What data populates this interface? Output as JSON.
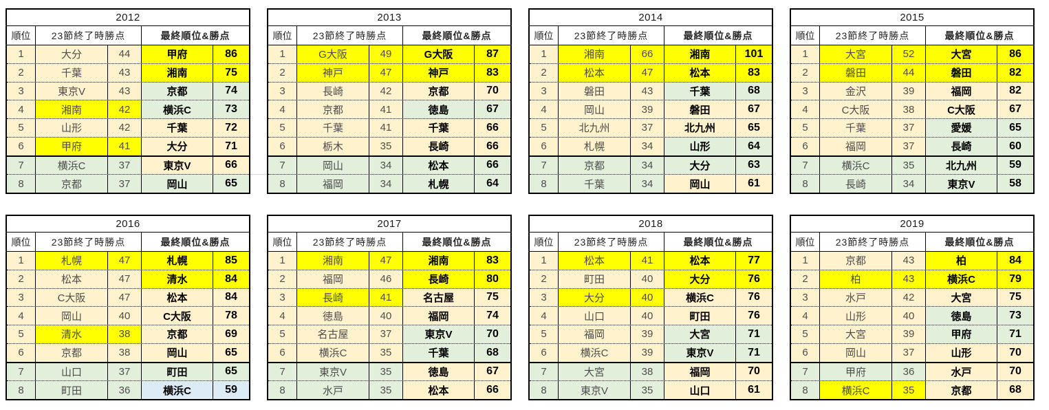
{
  "colors": {
    "cream": "#FFF2CC",
    "green": "#E2EFDA",
    "yellow": "#FFFF00",
    "blue": "#DDEBF7",
    "border": "#000000",
    "left_text": "#4d4d4d",
    "right_text": "#000000"
  },
  "headers": {
    "rank": "順位",
    "round23": "23節終了時勝点",
    "final": "最終順位&勝点"
  },
  "tables": [
    {
      "year": "2012",
      "rows": [
        {
          "rank": "1",
          "rbg": "cream",
          "team": "大分",
          "pts": "44",
          "bg": "cream",
          "fteam": "甲府",
          "fpts": "86",
          "fbg": "yellow"
        },
        {
          "rank": "2",
          "rbg": "cream",
          "team": "千葉",
          "pts": "43",
          "bg": "cream",
          "fteam": "湘南",
          "fpts": "75",
          "fbg": "yellow"
        },
        {
          "rank": "3",
          "rbg": "cream",
          "team": "東京V",
          "pts": "43",
          "bg": "cream",
          "fteam": "京都",
          "fpts": "74",
          "fbg": "green"
        },
        {
          "rank": "4",
          "rbg": "cream",
          "team": "湘南",
          "pts": "42",
          "bg": "yellow",
          "fteam": "横浜C",
          "fpts": "73",
          "fbg": "green"
        },
        {
          "rank": "5",
          "rbg": "cream",
          "team": "山形",
          "pts": "42",
          "bg": "cream",
          "fteam": "千葉",
          "fpts": "72",
          "fbg": "cream"
        },
        {
          "rank": "6",
          "rbg": "cream",
          "team": "甲府",
          "pts": "41",
          "bg": "yellow",
          "fteam": "大分",
          "fpts": "71",
          "fbg": "cream"
        },
        {
          "rank": "7",
          "rbg": "green",
          "team": "横浜C",
          "pts": "37",
          "bg": "green",
          "fteam": "東京V",
          "fpts": "66",
          "fbg": "cream"
        },
        {
          "rank": "8",
          "rbg": "green",
          "team": "京都",
          "pts": "37",
          "bg": "green",
          "fteam": "岡山",
          "fpts": "65",
          "fbg": "green"
        }
      ]
    },
    {
      "year": "2013",
      "rows": [
        {
          "rank": "1",
          "rbg": "cream",
          "team": "G大阪",
          "pts": "49",
          "bg": "yellow",
          "fteam": "G大阪",
          "fpts": "87",
          "fbg": "yellow"
        },
        {
          "rank": "2",
          "rbg": "cream",
          "team": "神戸",
          "pts": "47",
          "bg": "yellow",
          "fteam": "神戸",
          "fpts": "83",
          "fbg": "yellow"
        },
        {
          "rank": "3",
          "rbg": "cream",
          "team": "長崎",
          "pts": "42",
          "bg": "cream",
          "fteam": "京都",
          "fpts": "70",
          "fbg": "cream"
        },
        {
          "rank": "4",
          "rbg": "cream",
          "team": "京都",
          "pts": "41",
          "bg": "cream",
          "fteam": "徳島",
          "fpts": "67",
          "fbg": "green"
        },
        {
          "rank": "5",
          "rbg": "cream",
          "team": "千葉",
          "pts": "41",
          "bg": "cream",
          "fteam": "千葉",
          "fpts": "66",
          "fbg": "cream"
        },
        {
          "rank": "6",
          "rbg": "cream",
          "team": "栃木",
          "pts": "35",
          "bg": "cream",
          "fteam": "長崎",
          "fpts": "66",
          "fbg": "cream"
        },
        {
          "rank": "7",
          "rbg": "green",
          "team": "岡山",
          "pts": "34",
          "bg": "green",
          "fteam": "松本",
          "fpts": "66",
          "fbg": "green"
        },
        {
          "rank": "8",
          "rbg": "green",
          "team": "福岡",
          "pts": "34",
          "bg": "green",
          "fteam": "札幌",
          "fpts": "64",
          "fbg": "green"
        }
      ]
    },
    {
      "year": "2014",
      "rows": [
        {
          "rank": "1",
          "rbg": "cream",
          "team": "湘南",
          "pts": "66",
          "bg": "yellow",
          "fteam": "湘南",
          "fpts": "101",
          "fbg": "yellow"
        },
        {
          "rank": "2",
          "rbg": "cream",
          "team": "松本",
          "pts": "47",
          "bg": "yellow",
          "fteam": "松本",
          "fpts": "83",
          "fbg": "yellow"
        },
        {
          "rank": "3",
          "rbg": "cream",
          "team": "磐田",
          "pts": "43",
          "bg": "cream",
          "fteam": "千葉",
          "fpts": "68",
          "fbg": "green"
        },
        {
          "rank": "4",
          "rbg": "cream",
          "team": "岡山",
          "pts": "39",
          "bg": "cream",
          "fteam": "磐田",
          "fpts": "67",
          "fbg": "cream"
        },
        {
          "rank": "5",
          "rbg": "cream",
          "team": "北九州",
          "pts": "37",
          "bg": "cream",
          "fteam": "北九州",
          "fpts": "65",
          "fbg": "cream"
        },
        {
          "rank": "6",
          "rbg": "cream",
          "team": "札幌",
          "pts": "34",
          "bg": "cream",
          "fteam": "山形",
          "fpts": "64",
          "fbg": "green"
        },
        {
          "rank": "7",
          "rbg": "green",
          "team": "京都",
          "pts": "34",
          "bg": "green",
          "fteam": "大分",
          "fpts": "63",
          "fbg": "green"
        },
        {
          "rank": "8",
          "rbg": "green",
          "team": "千葉",
          "pts": "34",
          "bg": "green",
          "fteam": "岡山",
          "fpts": "61",
          "fbg": "cream"
        }
      ]
    },
    {
      "year": "2015",
      "rows": [
        {
          "rank": "1",
          "rbg": "cream",
          "team": "大宮",
          "pts": "52",
          "bg": "yellow",
          "fteam": "大宮",
          "fpts": "86",
          "fbg": "yellow"
        },
        {
          "rank": "2",
          "rbg": "cream",
          "team": "磐田",
          "pts": "44",
          "bg": "yellow",
          "fteam": "磐田",
          "fpts": "82",
          "fbg": "yellow"
        },
        {
          "rank": "3",
          "rbg": "cream",
          "team": "金沢",
          "pts": "39",
          "bg": "cream",
          "fteam": "福岡",
          "fpts": "82",
          "fbg": "cream"
        },
        {
          "rank": "4",
          "rbg": "cream",
          "team": "C大阪",
          "pts": "38",
          "bg": "cream",
          "fteam": "C大阪",
          "fpts": "67",
          "fbg": "cream"
        },
        {
          "rank": "5",
          "rbg": "cream",
          "team": "千葉",
          "pts": "37",
          "bg": "cream",
          "fteam": "愛媛",
          "fpts": "65",
          "fbg": "green"
        },
        {
          "rank": "6",
          "rbg": "cream",
          "team": "福岡",
          "pts": "37",
          "bg": "cream",
          "fteam": "長崎",
          "fpts": "60",
          "fbg": "green"
        },
        {
          "rank": "7",
          "rbg": "green",
          "team": "横浜C",
          "pts": "35",
          "bg": "green",
          "fteam": "北九州",
          "fpts": "59",
          "fbg": "green"
        },
        {
          "rank": "8",
          "rbg": "green",
          "team": "長崎",
          "pts": "34",
          "bg": "green",
          "fteam": "東京V",
          "fpts": "58",
          "fbg": "green"
        }
      ]
    },
    {
      "year": "2016",
      "rows": [
        {
          "rank": "1",
          "rbg": "cream",
          "team": "札幌",
          "pts": "47",
          "bg": "yellow",
          "fteam": "札幌",
          "fpts": "85",
          "fbg": "yellow"
        },
        {
          "rank": "2",
          "rbg": "cream",
          "team": "松本",
          "pts": "47",
          "bg": "cream",
          "fteam": "清水",
          "fpts": "84",
          "fbg": "yellow"
        },
        {
          "rank": "3",
          "rbg": "cream",
          "team": "C大阪",
          "pts": "47",
          "bg": "cream",
          "fteam": "松本",
          "fpts": "84",
          "fbg": "cream"
        },
        {
          "rank": "4",
          "rbg": "cream",
          "team": "岡山",
          "pts": "40",
          "bg": "cream",
          "fteam": "C大阪",
          "fpts": "78",
          "fbg": "cream"
        },
        {
          "rank": "5",
          "rbg": "cream",
          "team": "清水",
          "pts": "38",
          "bg": "yellow",
          "fteam": "京都",
          "fpts": "69",
          "fbg": "cream"
        },
        {
          "rank": "6",
          "rbg": "cream",
          "team": "京都",
          "pts": "38",
          "bg": "cream",
          "fteam": "岡山",
          "fpts": "65",
          "fbg": "cream"
        },
        {
          "rank": "7",
          "rbg": "green",
          "team": "山口",
          "pts": "37",
          "bg": "green",
          "fteam": "町田",
          "fpts": "65",
          "fbg": "green"
        },
        {
          "rank": "8",
          "rbg": "green",
          "team": "町田",
          "pts": "36",
          "bg": "green",
          "fteam": "横浜C",
          "fpts": "59",
          "fbg": "blue"
        }
      ]
    },
    {
      "year": "2017",
      "rows": [
        {
          "rank": "1",
          "rbg": "cream",
          "team": "湘南",
          "pts": "47",
          "bg": "yellow",
          "fteam": "湘南",
          "fpts": "83",
          "fbg": "yellow"
        },
        {
          "rank": "2",
          "rbg": "cream",
          "team": "福岡",
          "pts": "46",
          "bg": "cream",
          "fteam": "長崎",
          "fpts": "80",
          "fbg": "yellow"
        },
        {
          "rank": "3",
          "rbg": "cream",
          "team": "長崎",
          "pts": "41",
          "bg": "yellow",
          "fteam": "名古屋",
          "fpts": "75",
          "fbg": "cream"
        },
        {
          "rank": "4",
          "rbg": "cream",
          "team": "徳島",
          "pts": "40",
          "bg": "cream",
          "fteam": "福岡",
          "fpts": "74",
          "fbg": "cream"
        },
        {
          "rank": "5",
          "rbg": "cream",
          "team": "名古屋",
          "pts": "37",
          "bg": "cream",
          "fteam": "東京V",
          "fpts": "70",
          "fbg": "green"
        },
        {
          "rank": "6",
          "rbg": "cream",
          "team": "横浜C",
          "pts": "35",
          "bg": "cream",
          "fteam": "千葉",
          "fpts": "68",
          "fbg": "green"
        },
        {
          "rank": "7",
          "rbg": "green",
          "team": "東京V",
          "pts": "35",
          "bg": "green",
          "fteam": "徳島",
          "fpts": "67",
          "fbg": "cream"
        },
        {
          "rank": "8",
          "rbg": "green",
          "team": "水戸",
          "pts": "35",
          "bg": "green",
          "fteam": "松本",
          "fpts": "66",
          "fbg": "cream"
        }
      ]
    },
    {
      "year": "2018",
      "rows": [
        {
          "rank": "1",
          "rbg": "cream",
          "team": "松本",
          "pts": "41",
          "bg": "yellow",
          "fteam": "松本",
          "fpts": "77",
          "fbg": "yellow"
        },
        {
          "rank": "2",
          "rbg": "cream",
          "team": "町田",
          "pts": "40",
          "bg": "cream",
          "fteam": "大分",
          "fpts": "76",
          "fbg": "yellow"
        },
        {
          "rank": "3",
          "rbg": "cream",
          "team": "大分",
          "pts": "40",
          "bg": "yellow",
          "fteam": "横浜C",
          "fpts": "76",
          "fbg": "cream"
        },
        {
          "rank": "4",
          "rbg": "cream",
          "team": "山口",
          "pts": "40",
          "bg": "cream",
          "fteam": "町田",
          "fpts": "76",
          "fbg": "cream"
        },
        {
          "rank": "5",
          "rbg": "cream",
          "team": "福岡",
          "pts": "39",
          "bg": "cream",
          "fteam": "大宮",
          "fpts": "71",
          "fbg": "green"
        },
        {
          "rank": "6",
          "rbg": "cream",
          "team": "横浜C",
          "pts": "39",
          "bg": "cream",
          "fteam": "東京V",
          "fpts": "71",
          "fbg": "green"
        },
        {
          "rank": "7",
          "rbg": "green",
          "team": "大宮",
          "pts": "38",
          "bg": "green",
          "fteam": "福岡",
          "fpts": "70",
          "fbg": "cream"
        },
        {
          "rank": "8",
          "rbg": "green",
          "team": "東京V",
          "pts": "35",
          "bg": "green",
          "fteam": "山口",
          "fpts": "61",
          "fbg": "cream"
        }
      ]
    },
    {
      "year": "2019",
      "rows": [
        {
          "rank": "1",
          "rbg": "cream",
          "team": "京都",
          "pts": "43",
          "bg": "cream",
          "fteam": "柏",
          "fpts": "84",
          "fbg": "yellow"
        },
        {
          "rank": "2",
          "rbg": "cream",
          "team": "柏",
          "pts": "43",
          "bg": "yellow",
          "fteam": "横浜C",
          "fpts": "79",
          "fbg": "yellow"
        },
        {
          "rank": "3",
          "rbg": "cream",
          "team": "水戸",
          "pts": "42",
          "bg": "cream",
          "fteam": "大宮",
          "fpts": "75",
          "fbg": "cream"
        },
        {
          "rank": "4",
          "rbg": "cream",
          "team": "山形",
          "pts": "40",
          "bg": "cream",
          "fteam": "徳島",
          "fpts": "73",
          "fbg": "green"
        },
        {
          "rank": "5",
          "rbg": "cream",
          "team": "大宮",
          "pts": "39",
          "bg": "cream",
          "fteam": "甲府",
          "fpts": "71",
          "fbg": "green"
        },
        {
          "rank": "6",
          "rbg": "cream",
          "team": "岡山",
          "pts": "37",
          "bg": "cream",
          "fteam": "山形",
          "fpts": "70",
          "fbg": "cream"
        },
        {
          "rank": "7",
          "rbg": "green",
          "team": "甲府",
          "pts": "36",
          "bg": "green",
          "fteam": "水戸",
          "fpts": "70",
          "fbg": "cream"
        },
        {
          "rank": "8",
          "rbg": "green",
          "team": "横浜C",
          "pts": "35",
          "bg": "yellow",
          "fteam": "京都",
          "fpts": "68",
          "fbg": "cream"
        }
      ]
    }
  ]
}
